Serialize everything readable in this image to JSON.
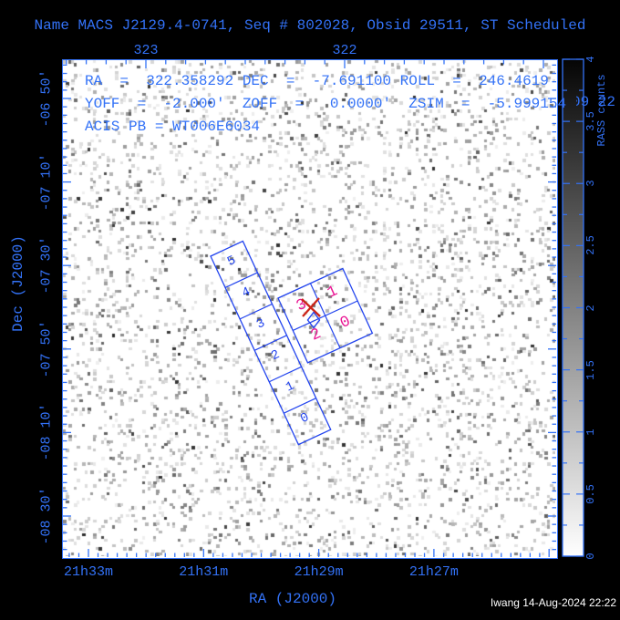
{
  "header": {
    "title": "Name MACS J2129.4-0741, Seq # 802028, Obsid 29511, ST Scheduled"
  },
  "info_panel": {
    "line1": "RA  =  322.358292 DEC  =  -7.691100 ROLL  =  246.4619",
    "line2": "YOFF  =  -2.000'  ZOFF  =   0.0000'  ZSIM  =  -5.999154",
    "line3": "ACIS PB = WT006E6034"
  },
  "plot": {
    "xlabel_bottom": "RA (J2000)",
    "ylabel_left": "Dec (J2000)",
    "x_ticks_top": [
      "323",
      "322"
    ],
    "x_ticks_bottom": [
      "21h33m",
      "21h31m",
      "21h29m",
      "21h27m"
    ],
    "y_ticks_left": [
      "-06 50'",
      "-07 10'",
      "-07 30'",
      "-07 50'",
      "-08 10'",
      "-08 30'"
    ]
  },
  "colorbar": {
    "label": "RASS counts",
    "tick_labels": [
      "0",
      "0.5",
      "1",
      "1.5",
      "2",
      "2.5",
      "3",
      "3.5",
      "4"
    ]
  },
  "overlay": {
    "acis_i_chip_labels": [
      "3",
      "1",
      "2",
      "0"
    ],
    "acis_s_chip_labels": [
      "5",
      "4",
      "3",
      "2",
      "1",
      "0"
    ]
  },
  "fragments": {
    "clipped_text": "09 22"
  },
  "footer": {
    "timestamp": "Iwang 14-Aug-2024 22:22"
  },
  "colors": {
    "text_blue": "#3372f7",
    "outline_blue": "#2244ee",
    "chip_label_magenta": "#ea1493",
    "aimpoint_red": "#cc2418",
    "background": "#000000",
    "sky": "#ffffff"
  },
  "chart_data": {
    "type": "heatmap",
    "title": "Name MACS J2129.4-0741, Seq # 802028, Obsid 29511, ST Scheduled",
    "xlabel": "RA (J2000)",
    "ylabel": "Dec (J2000)",
    "x_axis_bottom_ticks": [
      "21h33m",
      "21h31m",
      "21h29m",
      "21h27m"
    ],
    "x_axis_top_ticks_degrees": [
      323,
      322
    ],
    "y_axis_ticks": [
      "-06 50'",
      "-07 10'",
      "-07 30'",
      "-07 50'",
      "-08 10'",
      "-08 30'"
    ],
    "image_description": "ROSAT All-Sky Survey counts map (random speckle of gray pixels on white)",
    "colorbar": {
      "label": "RASS counts",
      "min": 0,
      "max": 4,
      "tick_values": [
        0,
        0.5,
        1,
        1.5,
        2,
        2.5,
        3,
        3.5,
        4
      ],
      "orientation": "vertical",
      "scale": "white (0) to black (4)"
    },
    "pointing": {
      "ra_deg": 322.358292,
      "dec_deg": -7.6911,
      "roll_deg": 246.4619,
      "yoff_arcmin": -2.0,
      "zoff_arcmin": 0.0,
      "zsim": -5.999154,
      "acis_pb": "WT006E6034"
    },
    "overlays": [
      {
        "name": "ACIS-I array",
        "shape": "2x2 squares",
        "chip_labels": [
          "3",
          "1",
          "2",
          "0"
        ],
        "label_color": "#ea1493",
        "outline_color": "#2244ee"
      },
      {
        "name": "ACIS-S array",
        "shape": "1x6 strip",
        "chip_labels": [
          "5",
          "4",
          "3",
          "2",
          "1",
          "0"
        ],
        "label_color": "#2244ee",
        "outline_color": "#2244ee"
      },
      {
        "name": "aimpoint",
        "marker": "red X on chip I3"
      },
      {
        "name": "target",
        "marker": "small blue diamond at ACIS-I center"
      }
    ],
    "legend_position": "none",
    "grid": false
  }
}
